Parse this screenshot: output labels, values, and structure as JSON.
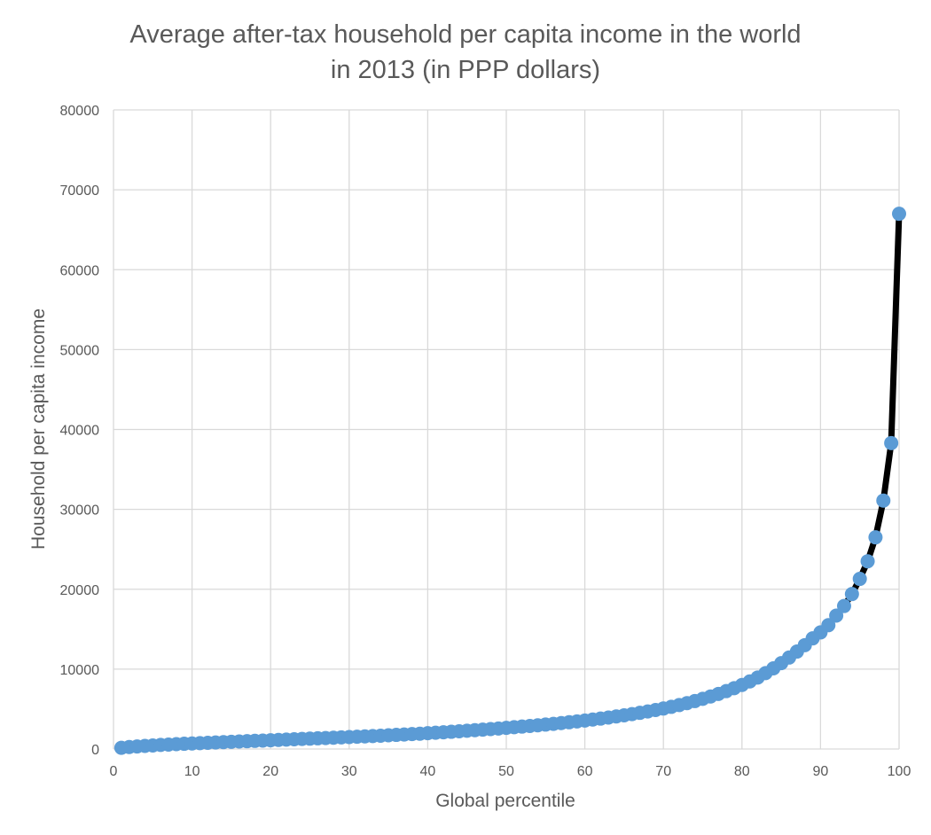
{
  "chart_data": {
    "type": "line",
    "title_lines": [
      "Average after-tax household per capita income in the world",
      "in 2013 (in PPP dollars)"
    ],
    "xlabel": "Global percentile",
    "ylabel": "Household per capita income",
    "xlim": [
      0,
      100
    ],
    "ylim": [
      0,
      80000
    ],
    "x_ticks": [
      0,
      10,
      20,
      30,
      40,
      50,
      60,
      70,
      80,
      90,
      100
    ],
    "y_ticks": [
      0,
      10000,
      20000,
      30000,
      40000,
      50000,
      60000,
      70000,
      80000
    ],
    "grid": true,
    "line_color": "#000000",
    "marker_color": "#5b9bd5",
    "series": [
      {
        "x": [
          1,
          2,
          3,
          4,
          5,
          6,
          7,
          8,
          9,
          10,
          11,
          12,
          13,
          14,
          15,
          16,
          17,
          18,
          19,
          20,
          21,
          22,
          23,
          24,
          25,
          26,
          27,
          28,
          29,
          30,
          31,
          32,
          33,
          34,
          35,
          36,
          37,
          38,
          39,
          40,
          41,
          42,
          43,
          44,
          45,
          46,
          47,
          48,
          49,
          50,
          51,
          52,
          53,
          54,
          55,
          56,
          57,
          58,
          59,
          60,
          61,
          62,
          63,
          64,
          65,
          66,
          67,
          68,
          69,
          70,
          71,
          72,
          73,
          74,
          75,
          76,
          77,
          78,
          79,
          80,
          81,
          82,
          83,
          84,
          85,
          86,
          87,
          88,
          89,
          90,
          91,
          92,
          93,
          94,
          95,
          96,
          97,
          98,
          99,
          100
        ],
        "y": [
          150,
          250,
          320,
          390,
          450,
          510,
          560,
          610,
          660,
          700,
          740,
          780,
          820,
          860,
          900,
          940,
          980,
          1020,
          1060,
          1100,
          1140,
          1180,
          1220,
          1260,
          1300,
          1340,
          1380,
          1420,
          1460,
          1500,
          1540,
          1580,
          1620,
          1670,
          1720,
          1770,
          1820,
          1870,
          1920,
          1980,
          2040,
          2100,
          2160,
          2220,
          2290,
          2360,
          2430,
          2500,
          2570,
          2650,
          2730,
          2810,
          2890,
          2970,
          3060,
          3150,
          3250,
          3350,
          3460,
          3570,
          3690,
          3810,
          3940,
          4080,
          4220,
          4370,
          4530,
          4700,
          4880,
          5070,
          5280,
          5500,
          5740,
          6000,
          6280,
          6580,
          6900,
          7250,
          7620,
          8020,
          8460,
          8950,
          9500,
          10100,
          10750,
          11450,
          12200,
          13000,
          13850,
          14600,
          15500,
          16700,
          17900,
          19400,
          21300,
          23500,
          26500,
          31100,
          38300,
          67000
        ]
      }
    ]
  }
}
